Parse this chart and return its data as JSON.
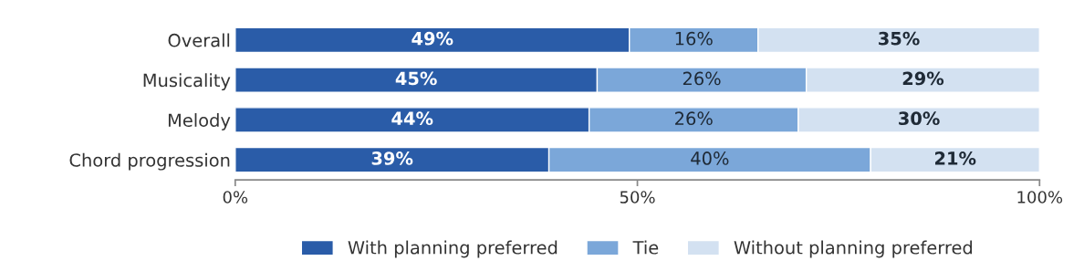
{
  "chart_data": {
    "type": "bar",
    "orientation": "horizontal",
    "stacked": true,
    "categories": [
      "Overall",
      "Musicality",
      "Melody",
      "Chord progression"
    ],
    "series": [
      {
        "name": "With planning preferred",
        "color": "#2a5ca8",
        "values": [
          49,
          45,
          44,
          39
        ],
        "value_labels": [
          "49%",
          "45%",
          "44%",
          "39%"
        ]
      },
      {
        "name": "Tie",
        "color": "#7ba7d9",
        "values": [
          16,
          26,
          26,
          40
        ],
        "value_labels": [
          "16%",
          "26%",
          "26%",
          "40%"
        ]
      },
      {
        "name": "Without planning preferred",
        "color": "#d3e1f1",
        "values": [
          35,
          29,
          30,
          21
        ],
        "value_labels": [
          "35%",
          "29%",
          "30%",
          "21%"
        ]
      }
    ],
    "xlim": [
      0,
      100
    ],
    "xticks": [
      {
        "value": 0,
        "label": "0%"
      },
      {
        "value": 50,
        "label": "50%"
      },
      {
        "value": 100,
        "label": "100%"
      }
    ],
    "grid": false,
    "legend": "bottom"
  }
}
